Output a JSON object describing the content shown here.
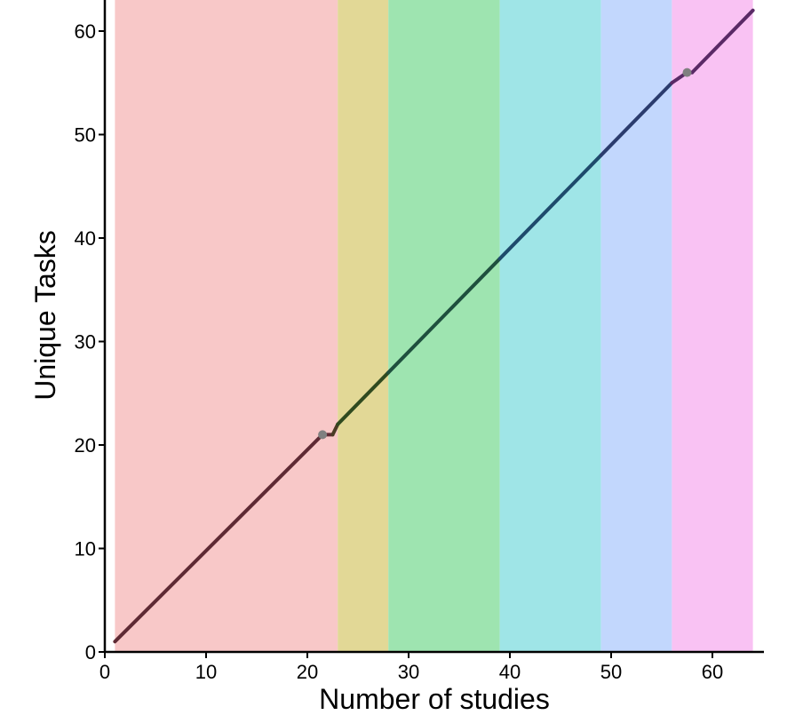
{
  "chart_data": {
    "type": "line",
    "xlabel": "Number of studies",
    "ylabel": "Unique Tasks",
    "xlim": [
      0,
      65
    ],
    "ylim": [
      0,
      63
    ],
    "x_ticks": [
      0,
      10,
      20,
      30,
      40,
      50,
      60
    ],
    "y_ticks": [
      0,
      10,
      20,
      30,
      40,
      50,
      60
    ],
    "grid": false,
    "legend": "none",
    "bands": [
      {
        "from": 1,
        "to": 23,
        "color": "#f8c8c8"
      },
      {
        "from": 23,
        "to": 28,
        "color": "#e2d896"
      },
      {
        "from": 28,
        "to": 39,
        "color": "#9ee4b0"
      },
      {
        "from": 39,
        "to": 49,
        "color": "#9fe5e7"
      },
      {
        "from": 49,
        "to": 56,
        "color": "#c2d7fd"
      },
      {
        "from": 56,
        "to": 64,
        "color": "#f9c2f3"
      }
    ],
    "series": [
      {
        "x": [
          1,
          21.5,
          22.5,
          23,
          28,
          39,
          49,
          56,
          57.5,
          58,
          64
        ],
        "y": [
          1,
          21,
          21,
          22,
          27,
          38,
          48,
          55,
          56,
          56,
          62
        ],
        "colors": [
          "#5e2a34",
          "#5e2a34",
          "#4a3b25",
          "#2f4a1f",
          "#1f4f3e",
          "#1e4a6c",
          "#2b3c6e",
          "#5a2a66",
          "#5a2a66",
          "#5a2a66"
        ]
      }
    ],
    "points": [
      {
        "x": 21.5,
        "y": 21,
        "color": "#808080"
      },
      {
        "x": 57.5,
        "y": 56,
        "color": "#808080"
      }
    ]
  }
}
